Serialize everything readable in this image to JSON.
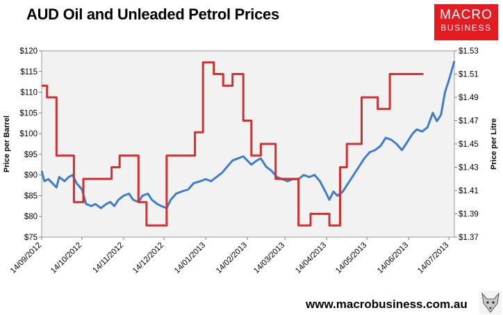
{
  "title": "AUD Oil and Unleaded Petrol Prices",
  "logo": {
    "line1": "MACRO",
    "line2": "BUSINESS"
  },
  "footer_url": "www.macrobusiness.com.au",
  "chart_data": {
    "type": "line",
    "title": "AUD Oil and Unleaded Petrol Prices",
    "ylabel": "Price per Barrel",
    "y2label": "Price per Litre",
    "ylim": [
      75,
      120
    ],
    "y2lim": [
      1.37,
      1.53
    ],
    "yticks": [
      "$75",
      "$80",
      "$85",
      "$90",
      "$95",
      "$100",
      "$105",
      "$110",
      "$115",
      "$120"
    ],
    "y2ticks": [
      "$1.37",
      "$1.39",
      "$1.41",
      "$1.43",
      "$1.45",
      "$1.47",
      "$1.49",
      "$1.51",
      "$1.53"
    ],
    "xlim": [
      "2012-09-14",
      "2013-07-18"
    ],
    "xticks": [
      "14/09/2012",
      "14/10/2012",
      "14/11/2012",
      "14/12/2012",
      "14/01/2013",
      "14/02/2013",
      "14/03/2013",
      "14/04/2013",
      "14/05/2013",
      "14/06/2013",
      "14/07/2013"
    ],
    "grid": false,
    "colors": {
      "oil": "#3d7cc9",
      "petrol": "#d03030",
      "plot_bg": "#f2f2f2"
    },
    "series": [
      {
        "axis": "left",
        "x": [
          "2012-09-14",
          "2012-09-16",
          "2012-09-19",
          "2012-09-22",
          "2012-09-25",
          "2012-09-27",
          "2012-10-01",
          "2012-10-04",
          "2012-10-07",
          "2012-10-10",
          "2012-10-14",
          "2012-10-17",
          "2012-10-21",
          "2012-10-24",
          "2012-10-28",
          "2012-11-01",
          "2012-11-04",
          "2012-11-07",
          "2012-11-10",
          "2012-11-14",
          "2012-11-18",
          "2012-11-21",
          "2012-11-25",
          "2012-11-28",
          "2012-12-02",
          "2012-12-05",
          "2012-12-09",
          "2012-12-12",
          "2012-12-16",
          "2012-12-19",
          "2012-12-23",
          "2012-12-27",
          "2013-01-01",
          "2013-01-05",
          "2013-01-10",
          "2013-01-14",
          "2013-01-18",
          "2013-01-22",
          "2013-01-26",
          "2013-01-30",
          "2013-02-03",
          "2013-02-07",
          "2013-02-11",
          "2013-02-14",
          "2013-02-17",
          "2013-02-21",
          "2013-02-24",
          "2013-02-28",
          "2013-03-04",
          "2013-03-08",
          "2013-03-12",
          "2013-03-16",
          "2013-03-20",
          "2013-03-24",
          "2013-03-28",
          "2013-04-01",
          "2013-04-05",
          "2013-04-09",
          "2013-04-13",
          "2013-04-16",
          "2013-04-19",
          "2013-04-22",
          "2013-04-26",
          "2013-04-30",
          "2013-05-04",
          "2013-05-08",
          "2013-05-12",
          "2013-05-16",
          "2013-05-20",
          "2013-05-24",
          "2013-05-28",
          "2013-06-01",
          "2013-06-05",
          "2013-06-09",
          "2013-06-13",
          "2013-06-17",
          "2013-06-20",
          "2013-06-24",
          "2013-06-28",
          "2013-07-02",
          "2013-07-05",
          "2013-07-08",
          "2013-07-11",
          "2013-07-14",
          "2013-07-18"
        ],
        "values": [
          91,
          88.5,
          89,
          88,
          87,
          89.5,
          88.5,
          89.5,
          90,
          88,
          86.5,
          83,
          82.5,
          83,
          82,
          83,
          83.5,
          82.5,
          84,
          85,
          85.5,
          84,
          83.5,
          85,
          85.5,
          84,
          83,
          82.5,
          82,
          84,
          85.5,
          86,
          86.5,
          88,
          88.5,
          89,
          88.5,
          89.5,
          90.5,
          92,
          93.5,
          94,
          94.5,
          93.5,
          92.5,
          93.5,
          94,
          92,
          91,
          89.5,
          89,
          88.5,
          89,
          89,
          90,
          89.5,
          90,
          88.5,
          86,
          84,
          86,
          85,
          86,
          88,
          90,
          92,
          94,
          95.5,
          96,
          97,
          99,
          98.5,
          97.5,
          96,
          98,
          100,
          101,
          100.5,
          101.5,
          105,
          103,
          104.5,
          110,
          113,
          117.5
        ]
      },
      {
        "axis": "right",
        "step": true,
        "x": [
          "2012-09-14",
          "2012-09-18",
          "2012-09-25",
          "2012-10-08",
          "2012-10-15",
          "2012-10-22",
          "2012-11-05",
          "2012-11-11",
          "2012-11-25",
          "2012-12-01",
          "2012-12-16",
          "2012-12-31",
          "2013-01-06",
          "2013-01-12",
          "2013-01-20",
          "2013-01-27",
          "2013-02-03",
          "2013-02-11",
          "2013-02-17",
          "2013-02-24",
          "2013-03-07",
          "2013-03-24",
          "2013-03-28",
          "2013-04-02",
          "2013-04-16",
          "2013-04-24",
          "2013-04-29",
          "2013-05-10",
          "2013-05-22",
          "2013-05-31",
          "2013-06-07",
          "2013-06-15"
        ],
        "values": [
          1.5,
          1.49,
          1.44,
          1.4,
          1.42,
          1.42,
          1.43,
          1.44,
          1.4,
          1.38,
          1.44,
          1.44,
          1.46,
          1.52,
          1.51,
          1.5,
          1.51,
          1.47,
          1.44,
          1.45,
          1.42,
          1.38,
          1.38,
          1.39,
          1.38,
          1.43,
          1.45,
          1.49,
          1.48,
          1.51,
          1.51,
          1.51
        ]
      }
    ]
  }
}
